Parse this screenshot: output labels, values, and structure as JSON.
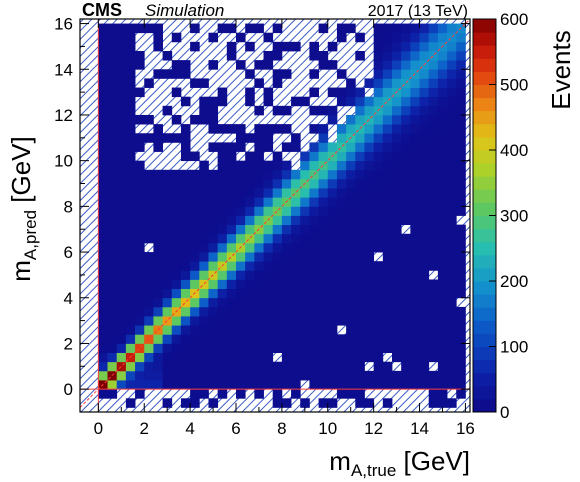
{
  "header": {
    "experiment": "CMS",
    "tag": "Simulation",
    "run": "2017 (13 TeV)"
  },
  "colors": {
    "diagonal_line": "#ff3b3b",
    "hatch": "#3b5cc7",
    "background": "#ffffff"
  },
  "chart_data": {
    "type": "heatmap",
    "title": "",
    "xlabel": {
      "main": "m",
      "sub": "A,true",
      "unit": " [GeV]"
    },
    "ylabel": {
      "main": "m",
      "sub": "A,pred",
      "unit": " [GeV]"
    },
    "zlabel": "Events",
    "xlim": [
      -0.8,
      16.2
    ],
    "ylim": [
      -1.0,
      16.2
    ],
    "zlim": [
      0,
      600
    ],
    "x_ticks": [
      "0",
      "2",
      "4",
      "6",
      "8",
      "10",
      "12",
      "14",
      "16"
    ],
    "y_ticks": [
      "0",
      "2",
      "4",
      "6",
      "8",
      "10",
      "12",
      "14",
      "16"
    ],
    "z_ticks": [
      "0",
      "100",
      "200",
      "300",
      "400",
      "500",
      "600"
    ],
    "bin_width_gev": 0.4,
    "colormap": "rainbow (blue to dark red)",
    "diagonal": {
      "description": "m_pred = m_true",
      "from": [
        -0.8,
        -0.8
      ],
      "to": [
        16.2,
        16.2
      ]
    },
    "guide_lines": {
      "x": 0,
      "y": 0
    },
    "hatched_regions": [
      "x < 0",
      "y < 0"
    ],
    "density_along_diagonal": [
      {
        "m_true": 0.4,
        "events": 600
      },
      {
        "m_true": 1.0,
        "events": 540
      },
      {
        "m_true": 2.0,
        "events": 500
      },
      {
        "m_true": 3.0,
        "events": 440
      },
      {
        "m_true": 4.0,
        "events": 410
      },
      {
        "m_true": 6.0,
        "events": 360
      },
      {
        "m_true": 8.0,
        "events": 300
      },
      {
        "m_true": 10.0,
        "events": 260
      },
      {
        "m_true": 12.0,
        "events": 220
      },
      {
        "m_true": 14.0,
        "events": 190
      },
      {
        "m_true": 15.8,
        "events": 170
      }
    ],
    "empty_bins_region": {
      "x": [
        1.5,
        12.0
      ],
      "y": [
        9.5,
        16.0
      ]
    }
  }
}
